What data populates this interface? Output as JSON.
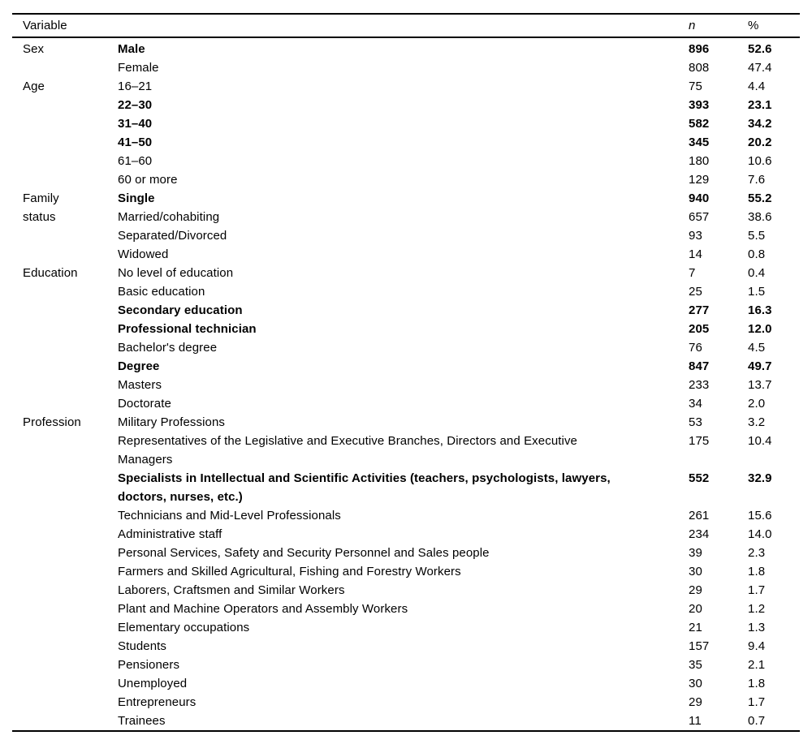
{
  "table": {
    "header": {
      "variable": "Variable",
      "n": "n",
      "pct": "%"
    },
    "groups": [
      {
        "label": "Sex",
        "rows": [
          {
            "label": "Male",
            "n": "896",
            "pct": "52.6",
            "bold": true
          },
          {
            "label": "Female",
            "n": "808",
            "pct": "47.4",
            "bold": false
          }
        ]
      },
      {
        "label": "Age",
        "rows": [
          {
            "label": "16–21",
            "n": "75",
            "pct": "4.4",
            "bold": false
          },
          {
            "label": "22–30",
            "n": "393",
            "pct": "23.1",
            "bold": true
          },
          {
            "label": "31–40",
            "n": "582",
            "pct": "34.2",
            "bold": true
          },
          {
            "label": "41–50",
            "n": "345",
            "pct": "20.2",
            "bold": true
          },
          {
            "label": "61–60",
            "n": "180",
            "pct": "10.6",
            "bold": false
          },
          {
            "label": "60 or more",
            "n": "129",
            "pct": "7.6",
            "bold": false
          }
        ]
      },
      {
        "label": "Family\nstatus",
        "rows": [
          {
            "label": "Single",
            "n": "940",
            "pct": "55.2",
            "bold": true
          },
          {
            "label": "Married/cohabiting",
            "n": "657",
            "pct": "38.6",
            "bold": false
          },
          {
            "label": "Separated/Divorced",
            "n": "93",
            "pct": "5.5",
            "bold": false
          },
          {
            "label": "Widowed",
            "n": "14",
            "pct": "0.8",
            "bold": false
          }
        ]
      },
      {
        "label": "Education",
        "rows": [
          {
            "label": "No level of education",
            "n": "7",
            "pct": "0.4",
            "bold": false
          },
          {
            "label": "Basic education",
            "n": "25",
            "pct": "1.5",
            "bold": false
          },
          {
            "label": "Secondary education",
            "n": "277",
            "pct": "16.3",
            "bold": true
          },
          {
            "label": "Professional technician",
            "n": "205",
            "pct": "12.0",
            "bold": true
          },
          {
            "label": "Bachelor's degree",
            "n": "76",
            "pct": "4.5",
            "bold": false
          },
          {
            "label": "Degree",
            "n": "847",
            "pct": "49.7",
            "bold": true
          },
          {
            "label": "Masters",
            "n": "233",
            "pct": "13.7",
            "bold": false
          },
          {
            "label": "Doctorate",
            "n": "34",
            "pct": "2.0",
            "bold": false
          }
        ]
      },
      {
        "label": "Profession",
        "rows": [
          {
            "label": "Military Professions",
            "n": "53",
            "pct": "3.2",
            "bold": false
          },
          {
            "label": "Representatives of the Legislative and Executive Branches, Directors and Executive\nManagers",
            "n": "175",
            "pct": "10.4",
            "bold": false
          },
          {
            "label": "Specialists in Intellectual and Scientific Activities (teachers, psychologists, lawyers,\ndoctors, nurses, etc.)",
            "n": "552",
            "pct": "32.9",
            "bold": true
          },
          {
            "label": "Technicians and Mid-Level Professionals",
            "n": "261",
            "pct": "15.6",
            "bold": false
          },
          {
            "label": "Administrative staff",
            "n": "234",
            "pct": "14.0",
            "bold": false
          },
          {
            "label": "Personal Services, Safety and Security Personnel and Sales people",
            "n": "39",
            "pct": "2.3",
            "bold": false
          },
          {
            "label": "Farmers and Skilled Agricultural, Fishing and Forestry Workers",
            "n": "30",
            "pct": "1.8",
            "bold": false
          },
          {
            "label": "Laborers, Craftsmen and Similar Workers",
            "n": "29",
            "pct": "1.7",
            "bold": false
          },
          {
            "label": "Plant and Machine Operators and Assembly Workers",
            "n": "20",
            "pct": "1.2",
            "bold": false
          },
          {
            "label": "Elementary occupations",
            "n": "21",
            "pct": "1.3",
            "bold": false
          },
          {
            "label": "Students",
            "n": "157",
            "pct": "9.4",
            "bold": false
          },
          {
            "label": "Pensioners",
            "n": "35",
            "pct": "2.1",
            "bold": false
          },
          {
            "label": "Unemployed",
            "n": "30",
            "pct": "1.8",
            "bold": false
          },
          {
            "label": "Entrepreneurs",
            "n": "29",
            "pct": "1.7",
            "bold": false
          },
          {
            "label": "Trainees",
            "n": "11",
            "pct": "0.7",
            "bold": false
          }
        ]
      }
    ]
  },
  "colors": {
    "text": "#000000",
    "background": "#ffffff",
    "rule": "#000000"
  }
}
